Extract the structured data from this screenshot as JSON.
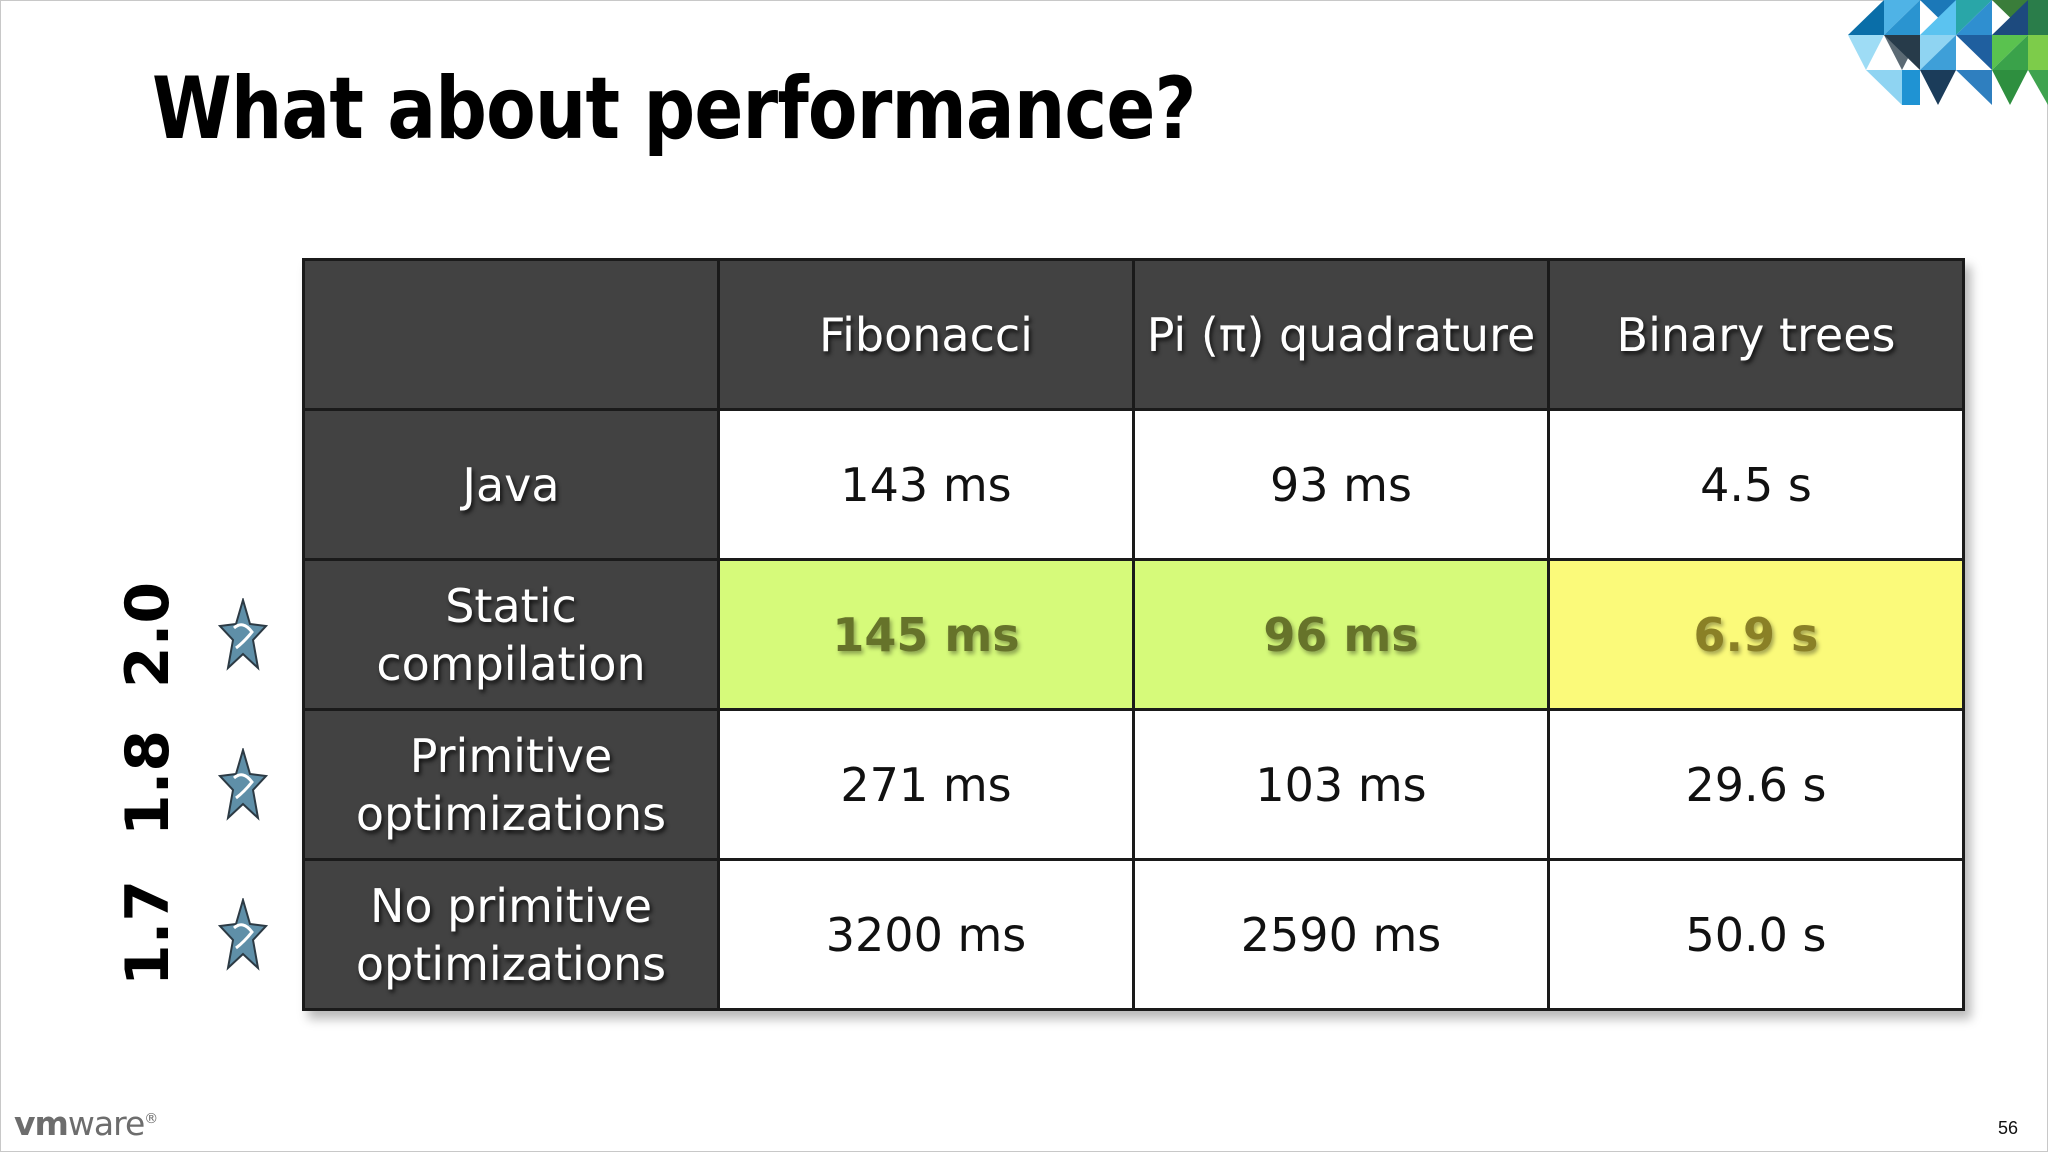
{
  "slide": {
    "title": "What about performance?",
    "page_number": "56",
    "brand": {
      "vm": "vm",
      "ware": "ware",
      "reg": "®"
    }
  },
  "table": {
    "columns": [
      "",
      "Fibonacci",
      "Pi (π) quadrature",
      "Binary trees"
    ],
    "rows": [
      {
        "label": "Java",
        "values": [
          "143 ms",
          "93 ms",
          "4.5 s"
        ]
      },
      {
        "label": "Static compilation",
        "values": [
          "145 ms",
          "96 ms",
          "6.9 s"
        ]
      },
      {
        "label": "Primitive optimizations",
        "values": [
          "271 ms",
          "103 ms",
          "29.6 s"
        ]
      },
      {
        "label": "No primitive optimizations",
        "values": [
          "3200 ms",
          "2590 ms",
          "50.0 s"
        ]
      }
    ]
  },
  "versions": [
    "2.0",
    "1.8",
    "1.7"
  ],
  "icons": {
    "version_icon": "groovy-star-icon",
    "corner": "vmware-triangle-pattern"
  },
  "colors": {
    "header_bg": "#424242",
    "highlight_green": "#d6fa7a",
    "highlight_yellow": "#fbfa7a"
  }
}
